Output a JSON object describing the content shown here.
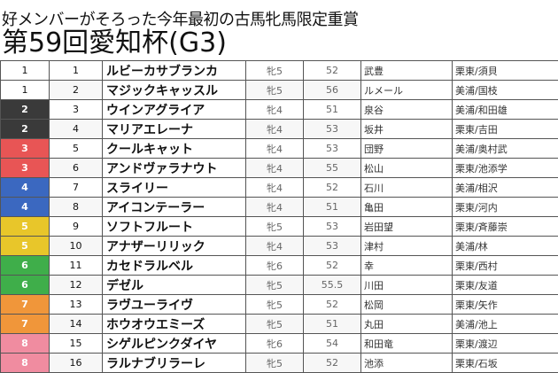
{
  "subtitle": "好メンバーがそろった今年最初の古馬牝馬限定重賞",
  "title": "第59回愛知杯(G3)",
  "frame_colors": {
    "1": "#ffffff",
    "2": "#3a3a3a",
    "3": "#e85555",
    "4": "#3b68c0",
    "5": "#e8c62a",
    "6": "#3fae4a",
    "7": "#f0963a",
    "8": "#f08ca0"
  },
  "frame_text_colors": {
    "1": "#111111"
  },
  "rows": [
    {
      "waku": "1",
      "num": "1",
      "horse": "ルビーカサブランカ",
      "sexage": "牝5",
      "weight": "52",
      "jockey": "武豊",
      "trainer": "栗東/須貝"
    },
    {
      "waku": "1",
      "num": "2",
      "horse": "マジックキャッスル",
      "sexage": "牝5",
      "weight": "56",
      "jockey": "ルメール",
      "trainer": "美浦/国枝"
    },
    {
      "waku": "2",
      "num": "3",
      "horse": "ウインアグライア",
      "sexage": "牝4",
      "weight": "51",
      "jockey": "泉谷",
      "trainer": "美浦/和田雄"
    },
    {
      "waku": "2",
      "num": "4",
      "horse": "マリアエレーナ",
      "sexage": "牝4",
      "weight": "53",
      "jockey": "坂井",
      "trainer": "栗東/吉田"
    },
    {
      "waku": "3",
      "num": "5",
      "horse": "クールキャット",
      "sexage": "牝4",
      "weight": "53",
      "jockey": "団野",
      "trainer": "美浦/奥村武"
    },
    {
      "waku": "3",
      "num": "6",
      "horse": "アンドヴァラナウト",
      "sexage": "牝4",
      "weight": "55",
      "jockey": "松山",
      "trainer": "栗東/池添学"
    },
    {
      "waku": "4",
      "num": "7",
      "horse": "スライリー",
      "sexage": "牝4",
      "weight": "52",
      "jockey": "石川",
      "trainer": "美浦/相沢"
    },
    {
      "waku": "4",
      "num": "8",
      "horse": "アイコンテーラー",
      "sexage": "牝4",
      "weight": "51",
      "jockey": "亀田",
      "trainer": "栗東/河内"
    },
    {
      "waku": "5",
      "num": "9",
      "horse": "ソフトフルート",
      "sexage": "牝5",
      "weight": "53",
      "jockey": "岩田望",
      "trainer": "栗東/斉藤崇"
    },
    {
      "waku": "5",
      "num": "10",
      "horse": "アナザーリリック",
      "sexage": "牝4",
      "weight": "53",
      "jockey": "津村",
      "trainer": "美浦/林"
    },
    {
      "waku": "6",
      "num": "11",
      "horse": "カセドラルベル",
      "sexage": "牝6",
      "weight": "52",
      "jockey": "幸",
      "trainer": "栗東/西村"
    },
    {
      "waku": "6",
      "num": "12",
      "horse": "デゼル",
      "sexage": "牝5",
      "weight": "55.5",
      "jockey": "川田",
      "trainer": "栗東/友道"
    },
    {
      "waku": "7",
      "num": "13",
      "horse": "ラヴユーライヴ",
      "sexage": "牝5",
      "weight": "52",
      "jockey": "松岡",
      "trainer": "栗東/矢作"
    },
    {
      "waku": "7",
      "num": "14",
      "horse": "ホウオウエミーズ",
      "sexage": "牝5",
      "weight": "51",
      "jockey": "丸田",
      "trainer": "美浦/池上"
    },
    {
      "waku": "8",
      "num": "15",
      "horse": "シゲルピンクダイヤ",
      "sexage": "牝6",
      "weight": "54",
      "jockey": "和田竜",
      "trainer": "栗東/渡辺"
    },
    {
      "waku": "8",
      "num": "16",
      "horse": "ラルナブリラーレ",
      "sexage": "牝5",
      "weight": "52",
      "jockey": "池添",
      "trainer": "栗東/石坂"
    }
  ]
}
